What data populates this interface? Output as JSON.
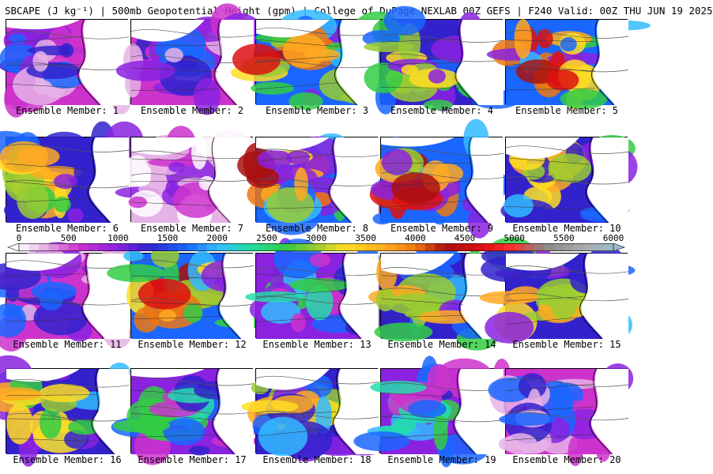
{
  "header": {
    "title": "SBCAPE (J kg⁻¹) | 500mb Geopotential Height (gpm) | College of DuPage NEXLAB 00Z GEFS | F240 Valid: 00Z THU JUN 19 2025"
  },
  "colorbar": {
    "min": 0,
    "max": 6000,
    "tick_labels": [
      "0",
      "500",
      "1000",
      "1500",
      "2000",
      "2500",
      "3000",
      "3500",
      "4000",
      "4500",
      "5000",
      "5500",
      "6000"
    ],
    "stops": [
      {
        "value": 0,
        "color": "#ffffff"
      },
      {
        "value": 250,
        "color": "#e6b3e6"
      },
      {
        "value": 600,
        "color": "#cc33cc"
      },
      {
        "value": 1000,
        "color": "#8a22e0"
      },
      {
        "value": 1300,
        "color": "#3322cc"
      },
      {
        "value": 1700,
        "color": "#1a66ff"
      },
      {
        "value": 2000,
        "color": "#33bbff"
      },
      {
        "value": 2300,
        "color": "#22ddaa"
      },
      {
        "value": 2700,
        "color": "#33cc44"
      },
      {
        "value": 3000,
        "color": "#99cc33"
      },
      {
        "value": 3300,
        "color": "#ffdd22"
      },
      {
        "value": 3700,
        "color": "#ffaa22"
      },
      {
        "value": 4000,
        "color": "#ee7711"
      },
      {
        "value": 4300,
        "color": "#aa1111"
      },
      {
        "value": 4700,
        "color": "#dd1111"
      },
      {
        "value": 5000,
        "color": "#ff3333"
      },
      {
        "value": 5300,
        "color": "#888888"
      },
      {
        "value": 5700,
        "color": "#aaaaaa"
      },
      {
        "value": 6000,
        "color": "#99bbcc"
      }
    ]
  },
  "members": [
    {
      "label": "Ensemble Member: 1",
      "intensity": 1
    },
    {
      "label": "Ensemble Member: 2",
      "intensity": 1
    },
    {
      "label": "Ensemble Member: 3",
      "intensity": 4
    },
    {
      "label": "Ensemble Member: 4",
      "intensity": 3
    },
    {
      "label": "Ensemble Member: 5",
      "intensity": 4
    },
    {
      "label": "Ensemble Member: 6",
      "intensity": 3
    },
    {
      "label": "Ensemble Member: 7",
      "intensity": 0
    },
    {
      "label": "Ensemble Member: 8",
      "intensity": 4
    },
    {
      "label": "Ensemble Member: 9",
      "intensity": 4
    },
    {
      "label": "Ensemble Member: 10",
      "intensity": 3
    },
    {
      "label": "Ensemble Member: 11",
      "intensity": 1
    },
    {
      "label": "Ensemble Member: 12",
      "intensity": 4
    },
    {
      "label": "Ensemble Member: 13",
      "intensity": 2
    },
    {
      "label": "Ensemble Member: 14",
      "intensity": 3
    },
    {
      "label": "Ensemble Member: 15",
      "intensity": 3
    },
    {
      "label": "Ensemble Member: 16",
      "intensity": 3
    },
    {
      "label": "Ensemble Member: 17",
      "intensity": 2
    },
    {
      "label": "Ensemble Member: 18",
      "intensity": 3
    },
    {
      "label": "Ensemble Member: 19",
      "intensity": 2
    },
    {
      "label": "Ensemble Member: 20",
      "intensity": 1
    }
  ]
}
